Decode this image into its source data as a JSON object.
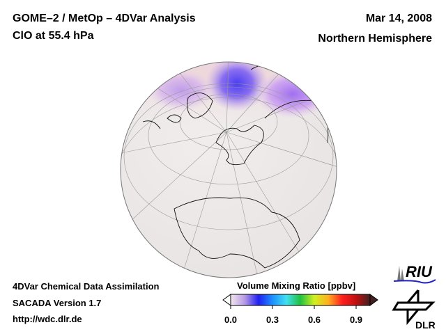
{
  "header": {
    "title": "GOME–2 / MetOp – 4DVar Analysis",
    "species": "ClO at 55.4 hPa",
    "date": "Mar 14, 2008",
    "region": "Northern Hemisphere"
  },
  "footer": {
    "line1": "4DVar Chemical Data Assimilation",
    "line2": "SACADA Version 1.7",
    "line3": "http://wdc.dlr.de"
  },
  "colorbar": {
    "title": "Volume Mixing Ratio [ppbv]",
    "ticks": [
      "0.0",
      "0.3",
      "0.6",
      "0.9"
    ],
    "range": [
      0.0,
      1.0
    ],
    "colors": [
      "#f2e8ec",
      "#b79ae6",
      "#2020f0",
      "#1e90ff",
      "#40e0f0",
      "#20c040",
      "#d0f020",
      "#ffb020",
      "#ff2020",
      "#c01010",
      "#402020"
    ]
  },
  "logos": {
    "riu": "RIU",
    "dlr": "DLR"
  }
}
